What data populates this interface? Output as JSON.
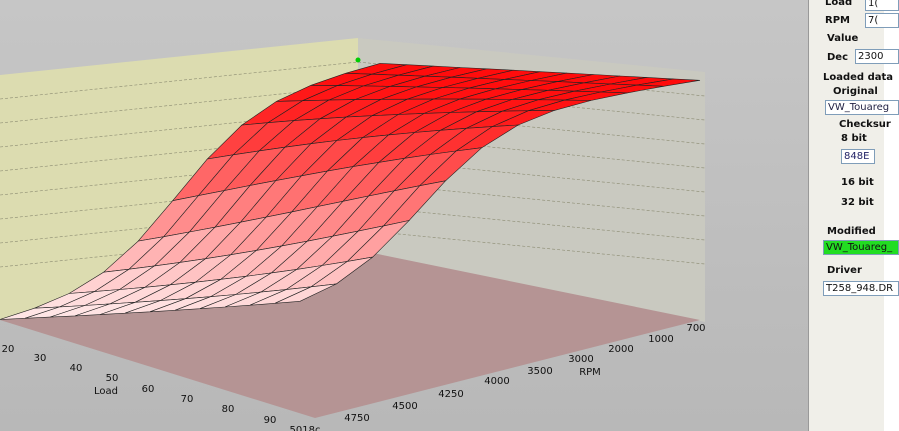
{
  "plot": {
    "load_axis": {
      "title": "Load",
      "ticks": [
        "20",
        "30",
        "40",
        "50",
        "60",
        "70",
        "80",
        "90",
        "5018c"
      ]
    },
    "rpm_axis": {
      "title": "RPM",
      "ticks": [
        "700",
        "1000",
        "2000",
        "3000",
        "3500",
        "4000",
        "4250",
        "4500",
        "4750"
      ]
    }
  },
  "panel": {
    "load_label": "Load",
    "load_value": "1(",
    "rpm_label": "RPM",
    "rpm_value": "7(",
    "value_group": "Value",
    "dec_label": "Dec",
    "dec_value": "2300",
    "loaded_group": "Loaded data",
    "original_group": "Original",
    "original_file": "VW_Touareg",
    "checksum_group": "Checksur",
    "bit8_label": "8 bit",
    "bit8_value": "848E",
    "bit16_label": "16 bit",
    "bit32_label": "32 bit",
    "modified_group": "Modified",
    "modified_file": "VW_Touareg_",
    "driver_group": "Driver",
    "driver_file": "T258_948.DR"
  }
}
